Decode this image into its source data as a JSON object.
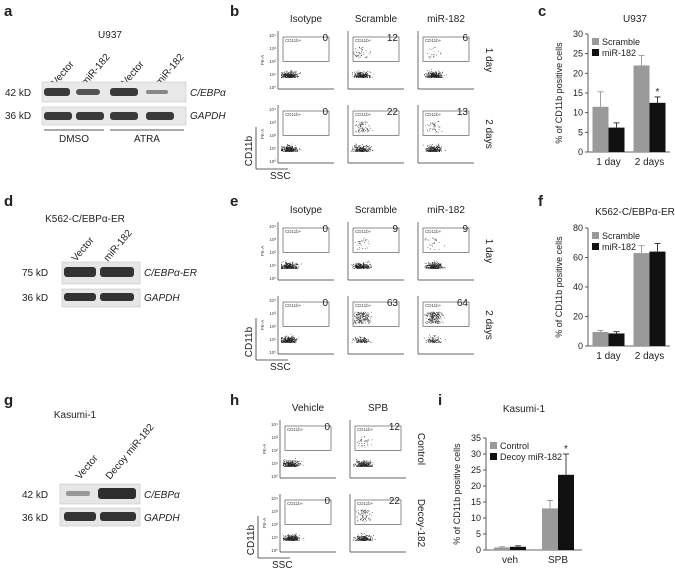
{
  "panels": {
    "a": {
      "letter": "a",
      "title": "U937",
      "lanes": [
        "Vector",
        "miR-182",
        "Vector",
        "miR-182"
      ],
      "mw": [
        "42 kD",
        "36 kD"
      ],
      "bands": [
        "C/EBPα",
        "GAPDH"
      ],
      "groups": [
        "DMSO",
        "ATRA"
      ]
    },
    "b": {
      "letter": "b",
      "cols": [
        "Isotype",
        "Scramble",
        "miR-182"
      ],
      "rows": [
        "1 day",
        "2 days"
      ],
      "values": [
        [
          "0",
          "12",
          "6"
        ],
        [
          "0",
          "22",
          "13"
        ]
      ]
    },
    "c": {
      "letter": "c"
    },
    "d": {
      "letter": "d",
      "title": "K562-C/EBPα-ER",
      "lanes": [
        "Vector",
        "miR-182"
      ],
      "mw": [
        "75 kD",
        "36 kD"
      ],
      "bands": [
        "C/EBPα-ER",
        "GAPDH"
      ]
    },
    "e": {
      "letter": "e",
      "cols": [
        "Isotype",
        "Scramble",
        "miR-182"
      ],
      "rows": [
        "1 day",
        "2 days"
      ],
      "values": [
        [
          "0",
          "9",
          "9"
        ],
        [
          "0",
          "63",
          "64"
        ]
      ]
    },
    "f": {
      "letter": "f"
    },
    "g": {
      "letter": "g",
      "title": "Kasumi-1",
      "lanes": [
        "Vector",
        "Decoy miR-182"
      ],
      "mw": [
        "42 kD",
        "36 kD"
      ],
      "bands": [
        "C/EBPα",
        "GAPDH"
      ]
    },
    "h": {
      "letter": "h",
      "cols": [
        "Vehicle",
        "SPB"
      ],
      "rows": [
        "Control",
        "Decoy-182"
      ],
      "values": [
        [
          "0",
          "12"
        ],
        [
          "0",
          "22"
        ]
      ]
    },
    "i": {
      "letter": "i"
    }
  },
  "flow_axes": {
    "y": "PE-A",
    "x": "SSC",
    "marker": "CD11b",
    "gate": "CD11b+"
  },
  "chart_data": [
    {
      "id": "c",
      "type": "bar",
      "title": "U937",
      "xlabel": "",
      "ylabel": "% of CD11b positive cells",
      "categories": [
        "1 day",
        "2 days"
      ],
      "ylim": [
        0,
        30
      ],
      "yticks": [
        0,
        5,
        10,
        15,
        20,
        25,
        30
      ],
      "series": [
        {
          "name": "Scramble",
          "color": "#9a9a9a",
          "values": [
            11.5,
            22
          ],
          "errors": [
            3.8,
            2.5
          ]
        },
        {
          "name": "miR-182",
          "color": "#111111",
          "values": [
            6.2,
            12.5
          ],
          "errors": [
            1.2,
            1.5
          ]
        }
      ],
      "annotations": [
        {
          "category": "2 days",
          "series": "miR-182",
          "text": "*"
        }
      ],
      "legend": "top-left"
    },
    {
      "id": "f",
      "type": "bar",
      "title": "K562-C/EBPα-ER",
      "xlabel": "",
      "ylabel": "% of CD11b positive cells",
      "categories": [
        "1 day",
        "2 days"
      ],
      "ylim": [
        0,
        80
      ],
      "yticks": [
        0,
        20,
        40,
        60,
        80
      ],
      "series": [
        {
          "name": "Scramble",
          "color": "#9a9a9a",
          "values": [
            9.5,
            63
          ],
          "errors": [
            1.0,
            5.0
          ]
        },
        {
          "name": "miR-182",
          "color": "#111111",
          "values": [
            8.5,
            64
          ],
          "errors": [
            1.2,
            5.5
          ]
        }
      ],
      "annotations": [],
      "legend": "top-left"
    },
    {
      "id": "i",
      "type": "bar",
      "title": "Kasumi-1",
      "xlabel": "",
      "ylabel": "% of CD11b positive cells",
      "categories": [
        "veh",
        "SPB"
      ],
      "ylim": [
        0,
        35
      ],
      "yticks": [
        0,
        5,
        10,
        15,
        20,
        25,
        30,
        35
      ],
      "series": [
        {
          "name": "Control",
          "color": "#9a9a9a",
          "values": [
            0.8,
            13
          ],
          "errors": [
            0.2,
            2.5
          ]
        },
        {
          "name": "Decoy miR-182",
          "color": "#111111",
          "values": [
            1.0,
            23.5
          ],
          "errors": [
            0.3,
            6.5
          ]
        }
      ],
      "annotations": [
        {
          "category": "SPB",
          "series": "Decoy miR-182",
          "text": "*"
        }
      ],
      "legend": "top-left"
    }
  ]
}
